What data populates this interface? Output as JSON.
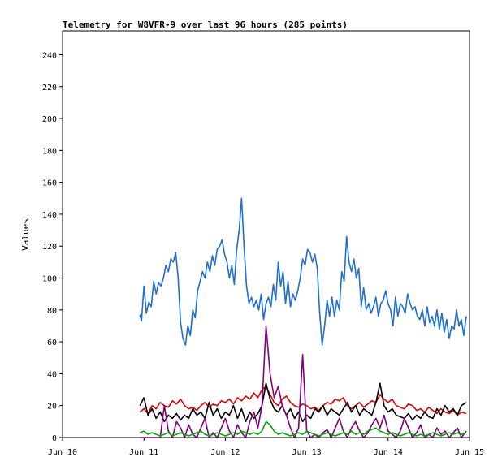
{
  "chart_data": {
    "type": "line",
    "title": "Telemetry for W8VFR-9 over last 96 hours (285 points)",
    "xlabel": "",
    "ylabel": "Values",
    "x_ticks": [
      "Jun 10",
      "Jun 11",
      "Jun 12",
      "Jun 13",
      "Jun 14",
      "Jun 15"
    ],
    "y_ticks": [
      0,
      20,
      40,
      60,
      80,
      100,
      120,
      140,
      160,
      180,
      200,
      220,
      240
    ],
    "xlim": [
      0,
      5
    ],
    "ylim": [
      0,
      255
    ],
    "grid": false,
    "legend": "none",
    "x_unit": "days after Jun 10",
    "series": [
      {
        "color": "#1f6fd0",
        "x": [
          0.95,
          0.97,
          1.0,
          1.03,
          1.06,
          1.09,
          1.12,
          1.15,
          1.18,
          1.21,
          1.24,
          1.27,
          1.3,
          1.33,
          1.36,
          1.39,
          1.42,
          1.45,
          1.48,
          1.51,
          1.54,
          1.57,
          1.6,
          1.63,
          1.66,
          1.69,
          1.72,
          1.75,
          1.78,
          1.81,
          1.84,
          1.87,
          1.9,
          1.93,
          1.96,
          1.99,
          2.02,
          2.05,
          2.08,
          2.11,
          2.14,
          2.17,
          2.2,
          2.23,
          2.26,
          2.29,
          2.32,
          2.35,
          2.38,
          2.41,
          2.44,
          2.47,
          2.5,
          2.53,
          2.56,
          2.59,
          2.62,
          2.65,
          2.68,
          2.71,
          2.74,
          2.77,
          2.8,
          2.83,
          2.86,
          2.89,
          2.92,
          2.95,
          2.98,
          3.01,
          3.04,
          3.07,
          3.1,
          3.13,
          3.16,
          3.19,
          3.22,
          3.25,
          3.28,
          3.31,
          3.34,
          3.37,
          3.4,
          3.43,
          3.46,
          3.49,
          3.52,
          3.55,
          3.58,
          3.61,
          3.64,
          3.67,
          3.7,
          3.73,
          3.76,
          3.79,
          3.82,
          3.85,
          3.88,
          3.91,
          3.94,
          3.97,
          4.0,
          4.03,
          4.06,
          4.09,
          4.12,
          4.15,
          4.18,
          4.21,
          4.24,
          4.27,
          4.3,
          4.33,
          4.36,
          4.39,
          4.42,
          4.45,
          4.48,
          4.51,
          4.54,
          4.57,
          4.6,
          4.63,
          4.66,
          4.69,
          4.72,
          4.75,
          4.78,
          4.81,
          4.84,
          4.87,
          4.9,
          4.93,
          4.96
        ],
        "y": [
          77,
          73,
          95,
          78,
          85,
          82,
          98,
          90,
          97,
          95,
          100,
          108,
          104,
          112,
          110,
          116,
          100,
          72,
          62,
          58,
          70,
          64,
          80,
          75,
          92,
          98,
          104,
          100,
          110,
          104,
          114,
          108,
          118,
          120,
          124,
          115,
          110,
          100,
          108,
          96,
          118,
          130,
          150,
          120,
          95,
          84,
          88,
          82,
          86,
          80,
          90,
          74,
          84,
          88,
          82,
          96,
          86,
          110,
          95,
          104,
          84,
          98,
          82,
          90,
          86,
          92,
          100,
          112,
          108,
          118,
          116,
          110,
          115,
          106,
          78,
          58,
          70,
          86,
          76,
          88,
          76,
          86,
          80,
          104,
          98,
          126,
          110,
          104,
          112,
          100,
          106,
          82,
          94,
          80,
          84,
          78,
          82,
          88,
          76,
          84,
          86,
          92,
          84,
          80,
          70,
          88,
          76,
          84,
          82,
          78,
          90,
          84,
          80,
          82,
          76,
          74,
          80,
          70,
          82,
          72,
          76,
          70,
          80,
          68,
          78,
          66,
          74,
          62,
          70,
          68,
          80,
          70,
          74,
          64,
          76
        ]
      },
      {
        "color": "#e00000",
        "x": [
          0.95,
          1.0,
          1.05,
          1.1,
          1.15,
          1.2,
          1.25,
          1.3,
          1.35,
          1.4,
          1.45,
          1.5,
          1.55,
          1.6,
          1.65,
          1.7,
          1.75,
          1.8,
          1.85,
          1.9,
          1.95,
          2.0,
          2.05,
          2.1,
          2.15,
          2.2,
          2.25,
          2.3,
          2.35,
          2.4,
          2.45,
          2.5,
          2.55,
          2.6,
          2.65,
          2.7,
          2.75,
          2.8,
          2.85,
          2.9,
          2.95,
          3.0,
          3.05,
          3.1,
          3.15,
          3.2,
          3.25,
          3.3,
          3.35,
          3.4,
          3.45,
          3.5,
          3.55,
          3.6,
          3.65,
          3.7,
          3.75,
          3.8,
          3.85,
          3.9,
          3.95,
          4.0,
          4.05,
          4.1,
          4.15,
          4.2,
          4.25,
          4.3,
          4.35,
          4.4,
          4.45,
          4.5,
          4.55,
          4.6,
          4.65,
          4.7,
          4.75,
          4.8,
          4.85,
          4.9,
          4.96
        ],
        "y": [
          16,
          18,
          15,
          20,
          18,
          22,
          20,
          19,
          23,
          21,
          24,
          20,
          18,
          19,
          17,
          20,
          22,
          19,
          21,
          20,
          23,
          22,
          24,
          21,
          25,
          23,
          26,
          24,
          28,
          25,
          30,
          32,
          27,
          22,
          20,
          24,
          26,
          22,
          20,
          19,
          21,
          20,
          18,
          19,
          17,
          20,
          22,
          21,
          24,
          23,
          25,
          20,
          18,
          20,
          22,
          19,
          21,
          23,
          22,
          27,
          24,
          22,
          24,
          20,
          19,
          18,
          21,
          20,
          17,
          18,
          16,
          19,
          17,
          15,
          18,
          16,
          15,
          17,
          14,
          16,
          15
        ]
      },
      {
        "color": "#000000",
        "x": [
          0.95,
          1.0,
          1.05,
          1.1,
          1.15,
          1.2,
          1.25,
          1.3,
          1.35,
          1.4,
          1.45,
          1.5,
          1.55,
          1.6,
          1.65,
          1.7,
          1.75,
          1.8,
          1.85,
          1.9,
          1.95,
          2.0,
          2.05,
          2.1,
          2.15,
          2.2,
          2.25,
          2.3,
          2.35,
          2.4,
          2.45,
          2.5,
          2.55,
          2.6,
          2.65,
          2.7,
          2.75,
          2.8,
          2.85,
          2.9,
          2.95,
          3.0,
          3.05,
          3.1,
          3.15,
          3.2,
          3.25,
          3.3,
          3.35,
          3.4,
          3.45,
          3.5,
          3.55,
          3.6,
          3.65,
          3.7,
          3.75,
          3.8,
          3.85,
          3.9,
          3.95,
          4.0,
          4.05,
          4.1,
          4.15,
          4.2,
          4.25,
          4.3,
          4.35,
          4.4,
          4.45,
          4.5,
          4.55,
          4.6,
          4.65,
          4.7,
          4.75,
          4.8,
          4.85,
          4.9,
          4.96
        ],
        "y": [
          20,
          25,
          14,
          18,
          12,
          16,
          10,
          14,
          12,
          15,
          11,
          14,
          12,
          18,
          14,
          16,
          12,
          22,
          14,
          18,
          12,
          16,
          14,
          20,
          12,
          18,
          10,
          16,
          12,
          15,
          20,
          34,
          24,
          18,
          16,
          20,
          14,
          18,
          12,
          16,
          10,
          14,
          12,
          18,
          16,
          20,
          14,
          18,
          16,
          14,
          18,
          22,
          16,
          20,
          14,
          18,
          16,
          14,
          22,
          34,
          20,
          16,
          18,
          14,
          13,
          12,
          15,
          11,
          14,
          12,
          16,
          13,
          12,
          18,
          14,
          20,
          16,
          18,
          14,
          20,
          22
        ]
      },
      {
        "color": "#800080",
        "x": [
          0.95,
          1.0,
          1.05,
          1.1,
          1.15,
          1.2,
          1.25,
          1.3,
          1.35,
          1.4,
          1.45,
          1.5,
          1.55,
          1.6,
          1.65,
          1.7,
          1.75,
          1.8,
          1.85,
          1.9,
          1.95,
          2.0,
          2.05,
          2.1,
          2.15,
          2.2,
          2.25,
          2.3,
          2.35,
          2.4,
          2.45,
          2.5,
          2.55,
          2.6,
          2.65,
          2.7,
          2.75,
          2.8,
          2.85,
          2.9,
          2.95,
          3.0,
          3.05,
          3.1,
          3.15,
          3.2,
          3.25,
          3.3,
          3.35,
          3.4,
          3.45,
          3.5,
          3.55,
          3.6,
          3.65,
          3.7,
          3.75,
          3.8,
          3.85,
          3.9,
          3.95,
          4.0,
          4.05,
          4.1,
          4.15,
          4.2,
          4.25,
          4.3,
          4.35,
          4.4,
          4.45,
          4.5,
          4.55,
          4.6,
          4.65,
          4.7,
          4.75,
          4.8,
          4.85,
          4.9,
          4.96
        ],
        "y": [
          0,
          0,
          0,
          0,
          0,
          0,
          20,
          4,
          0,
          10,
          6,
          0,
          8,
          2,
          0,
          6,
          12,
          0,
          3,
          0,
          6,
          12,
          4,
          0,
          8,
          3,
          0,
          10,
          16,
          6,
          20,
          70,
          40,
          25,
          32,
          20,
          14,
          6,
          0,
          6,
          52,
          4,
          0,
          2,
          0,
          3,
          5,
          0,
          6,
          12,
          4,
          0,
          6,
          10,
          4,
          0,
          3,
          8,
          12,
          6,
          14,
          4,
          2,
          0,
          4,
          12,
          6,
          0,
          3,
          8,
          0,
          2,
          0,
          6,
          2,
          4,
          0,
          3,
          6,
          0,
          4
        ]
      },
      {
        "color": "#00aa00",
        "x": [
          0.95,
          1.0,
          1.05,
          1.1,
          1.15,
          1.2,
          1.25,
          1.3,
          1.35,
          1.4,
          1.45,
          1.5,
          1.55,
          1.6,
          1.65,
          1.7,
          1.75,
          1.8,
          1.85,
          1.9,
          1.95,
          2.0,
          2.05,
          2.1,
          2.15,
          2.2,
          2.25,
          2.3,
          2.35,
          2.4,
          2.45,
          2.5,
          2.55,
          2.6,
          2.65,
          2.7,
          2.75,
          2.8,
          2.85,
          2.9,
          2.95,
          3.0,
          3.05,
          3.1,
          3.15,
          3.2,
          3.25,
          3.3,
          3.35,
          3.4,
          3.45,
          3.5,
          3.55,
          3.6,
          3.65,
          3.7,
          3.75,
          3.8,
          3.85,
          3.9,
          3.95,
          4.0,
          4.05,
          4.1,
          4.15,
          4.2,
          4.25,
          4.3,
          4.35,
          4.4,
          4.45,
          4.5,
          4.55,
          4.6,
          4.65,
          4.7,
          4.75,
          4.8,
          4.85,
          4.9,
          4.96
        ],
        "y": [
          3,
          4,
          2,
          3,
          2,
          1,
          2,
          3,
          1,
          2,
          3,
          2,
          1,
          2,
          3,
          4,
          2,
          1,
          2,
          3,
          2,
          1,
          2,
          3,
          2,
          4,
          3,
          2,
          3,
          2,
          4,
          10,
          8,
          4,
          2,
          3,
          2,
          1,
          2,
          3,
          2,
          4,
          3,
          2,
          1,
          2,
          3,
          2,
          1,
          2,
          3,
          2,
          4,
          2,
          3,
          2,
          4,
          5,
          6,
          4,
          3,
          2,
          3,
          2,
          1,
          2,
          3,
          2,
          1,
          2,
          1,
          2,
          3,
          2,
          1,
          2,
          3,
          2,
          3,
          2,
          3
        ]
      }
    ]
  }
}
